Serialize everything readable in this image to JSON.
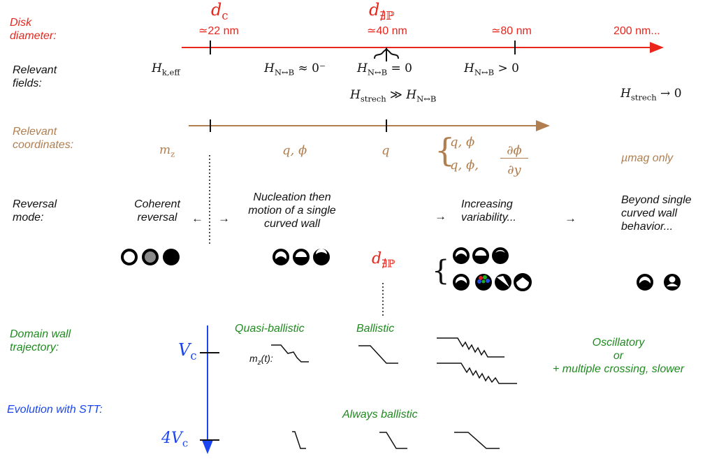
{
  "rows": {
    "disk_label": "Disk\ndiameter:",
    "fields_label": "Relevant\nfields:",
    "coords_label": "Relevant\ncoordinates:",
    "mode_label": "Reversal\nmode:",
    "trajectory_label": "Domain wall\ntrajectory:",
    "stt_label": "Evolution with STT:"
  },
  "disk_axis": {
    "dc_symbol": "d",
    "dc_sub": "c",
    "dnp_symbol": "d",
    "dnp_sub": "∄ℙ",
    "ticks": [
      "≃22 nm",
      "≃40 nm",
      "≃80 nm",
      "200 nm..."
    ],
    "color": "#e8261c"
  },
  "fields": {
    "hk_eff": "H",
    "hk_eff_sub": "k,eff",
    "h_nb_approx": "H",
    "h_nb_approx_sub": "N↔B",
    "h_nb_approx_rest": " ≈ 0⁻",
    "h_nb_zero": "H",
    "h_nb_zero_sub": "N↔B",
    "h_nb_zero_rest": " = 0",
    "h_nb_pos": "H",
    "h_nb_pos_sub": "N↔B",
    "h_nb_pos_rest": " > 0",
    "h_stretch_gg": "H",
    "h_stretch_gg_sub": "strech",
    "h_stretch_gg_mid": " ≫ ",
    "h_stretch_gg_h2": "H",
    "h_stretch_gg_h2_sub": "N↔B",
    "h_stretch_to0": "H",
    "h_stretch_to0_sub": "strech",
    "h_stretch_to0_rest": " → 0"
  },
  "coordinates": {
    "mz": "m",
    "mz_sub": "z",
    "q_phi": "q,  ϕ",
    "q": "q",
    "brace_line1": "q,  ϕ",
    "brace_line2": "q,  ϕ,",
    "frac_num": "∂ϕ",
    "frac_den": "∂y",
    "umag": "µmag only",
    "color": "#b07e4f"
  },
  "modes": {
    "coherent": "Coherent\nreversal",
    "arrow_left": "←",
    "arrow_right": "→",
    "nucleation": "Nucleation then\nmotion of a single\ncurved wall",
    "arrow_mid": "→",
    "increasing": "Increasing\nvariability...",
    "arrow_right2": "→",
    "beyond": "Beyond single\ncurved wall\nbehavior...",
    "dnp_symbol": "d",
    "dnp_sub": "∄ℙ"
  },
  "trajectory": {
    "vc": "V",
    "vc_sub": "c",
    "four_vc": "4V",
    "four_vc_sub": "c",
    "quasi_ballistic": "Quasi-ballistic",
    "ballistic": "Ballistic",
    "mz_t": "m",
    "mz_t_sub": "z",
    "mz_t_rest": "(t):",
    "oscillatory": "Oscillatory\nor\n+ multiple crossing, slower",
    "always_ballistic": "Always ballistic"
  },
  "colors": {
    "red": "#e8261c",
    "brown": "#b07e4f",
    "green": "#1f8a1f",
    "blue": "#1a45f0",
    "gray_disk": "#8a8a8a",
    "dot_red": "#e02020",
    "dot_green": "#20b020",
    "dot_blue": "#2050e0"
  }
}
